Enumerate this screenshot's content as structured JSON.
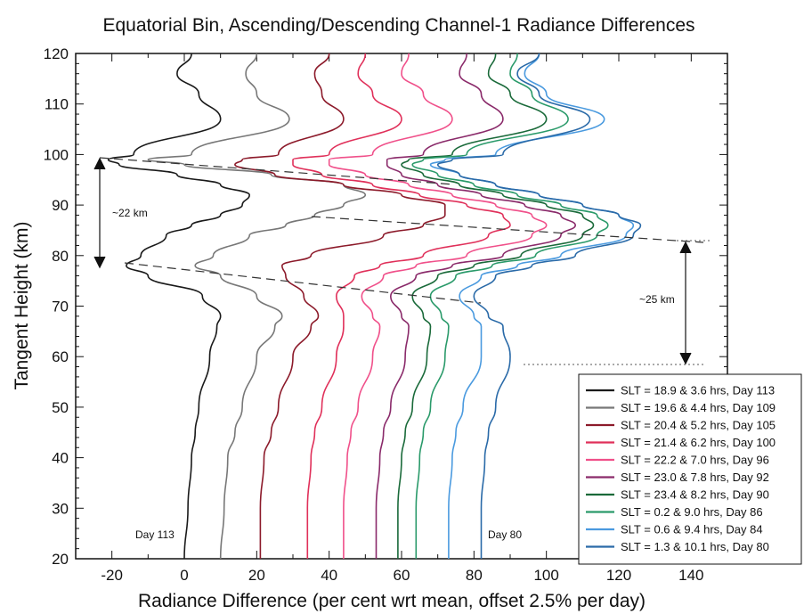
{
  "chart_data": {
    "type": "line",
    "title": "Equatorial Bin, Ascending/Descending Channel-1 Radiance Differences",
    "xlabel": "Radiance Difference (per cent wrt mean, offset 2.5% per day)",
    "ylabel": "Tangent Height (km)",
    "xlim": [
      -30,
      150
    ],
    "ylim": [
      20,
      120
    ],
    "xticks": [
      "-20",
      "0",
      "20",
      "40",
      "60",
      "80",
      "100",
      "120",
      "140"
    ],
    "yticks": [
      "20",
      "30",
      "40",
      "50",
      "60",
      "70",
      "80",
      "90",
      "100",
      "110",
      "120"
    ],
    "legend_position": "bottom-right",
    "annotations": {
      "left_span": "~22 km",
      "right_span": "~25 km",
      "day_left": "Day 113",
      "day_right": "Day 80"
    },
    "series": [
      {
        "name": "SLT = 18.9 & 3.6 hrs, Day 113",
        "color": "#1a1a1a",
        "x": [
          0,
          1,
          2,
          3,
          4,
          7,
          9,
          10,
          5,
          -10,
          -16,
          -12,
          -5,
          2,
          10,
          16,
          18,
          10,
          -2,
          -18,
          -21,
          -14,
          10,
          4,
          -2,
          2
        ],
        "y": [
          20,
          30,
          40,
          45,
          50,
          60,
          66,
          68,
          72,
          76,
          78,
          80,
          84,
          86,
          88,
          90,
          92,
          94,
          96,
          98,
          99,
          100,
          107,
          112,
          116,
          120
        ]
      },
      {
        "name": "SLT = 19.6 & 4.4 hrs, Day 109",
        "color": "#777777",
        "x": [
          10,
          11,
          12,
          14,
          16,
          20,
          25,
          27,
          20,
          10,
          3,
          8,
          18,
          28,
          36,
          44,
          50,
          44,
          24,
          0,
          -10,
          2,
          29,
          20,
          17,
          20
        ],
        "y": [
          20,
          30,
          40,
          45,
          50,
          60,
          66,
          68,
          72,
          76,
          78,
          80,
          84,
          86,
          88,
          90,
          92,
          94,
          96,
          98,
          99,
          100,
          107,
          112,
          116,
          120
        ]
      },
      {
        "name": "SLT = 20.4 & 5.2 hrs, Day 105",
        "color": "#8c1a2a",
        "x": [
          21,
          21,
          22,
          24,
          26,
          30,
          35,
          37,
          33,
          28,
          27,
          35,
          55,
          66,
          72,
          72,
          60,
          44,
          25,
          14,
          16,
          26,
          44,
          38,
          36,
          40
        ],
        "y": [
          20,
          30,
          40,
          45,
          50,
          60,
          66,
          68,
          72,
          76,
          78,
          80,
          84,
          86,
          88,
          90,
          92,
          94,
          96,
          98,
          99,
          100,
          107,
          112,
          116,
          120
        ]
      },
      {
        "name": "SLT = 21.4 & 6.2 hrs, Day 100",
        "color": "#e0305a",
        "x": [
          34,
          34,
          35,
          36,
          38,
          42,
          44,
          44,
          42,
          47,
          54,
          66,
          84,
          90,
          88,
          78,
          65,
          52,
          38,
          30,
          30,
          40,
          60,
          52,
          48,
          50
        ],
        "y": [
          20,
          30,
          40,
          45,
          50,
          60,
          66,
          68,
          72,
          76,
          78,
          80,
          84,
          86,
          88,
          90,
          92,
          94,
          96,
          98,
          99,
          100,
          107,
          112,
          116,
          120
        ]
      },
      {
        "name": "SLT = 22.2 & 7.0 hrs, Day 96",
        "color": "#f0508a",
        "x": [
          44,
          44,
          45,
          46,
          48,
          52,
          54,
          52,
          49,
          55,
          64,
          78,
          96,
          100,
          96,
          86,
          74,
          62,
          50,
          40,
          40,
          52,
          74,
          66,
          60,
          62
        ],
        "y": [
          20,
          30,
          40,
          45,
          50,
          60,
          66,
          68,
          72,
          76,
          78,
          80,
          84,
          86,
          88,
          90,
          92,
          94,
          96,
          98,
          99,
          100,
          107,
          112,
          116,
          120
        ]
      },
      {
        "name": "SLT = 23.0 & 7.8 hrs, Day 92",
        "color": "#8a2a6a",
        "x": [
          53,
          53,
          54,
          55,
          57,
          61,
          62,
          60,
          57,
          64,
          74,
          88,
          104,
          108,
          104,
          94,
          82,
          70,
          60,
          56,
          56,
          66,
          88,
          82,
          76,
          78
        ],
        "y": [
          20,
          30,
          40,
          45,
          50,
          60,
          66,
          68,
          72,
          76,
          78,
          80,
          84,
          86,
          88,
          90,
          92,
          94,
          96,
          98,
          99,
          100,
          107,
          112,
          116,
          120
        ]
      },
      {
        "name": "SLT = 23.4 & 8.2 hrs, Day 90",
        "color": "#1a6a3a",
        "x": [
          59,
          59,
          60,
          61,
          63,
          67,
          68,
          66,
          63,
          70,
          80,
          93,
          110,
          113,
          110,
          100,
          88,
          76,
          66,
          60,
          62,
          74,
          100,
          90,
          84,
          86
        ],
        "y": [
          20,
          30,
          40,
          45,
          50,
          60,
          66,
          68,
          72,
          76,
          78,
          80,
          84,
          86,
          88,
          90,
          92,
          94,
          96,
          98,
          99,
          100,
          107,
          112,
          116,
          120
        ]
      },
      {
        "name": "SLT = 0.2 & 9.0 hrs,  Day 86",
        "color": "#2a9a6a",
        "x": [
          64,
          64,
          65,
          66,
          68,
          72,
          73,
          71,
          68,
          75,
          85,
          97,
          114,
          117,
          114,
          104,
          92,
          80,
          70,
          63,
          66,
          78,
          106,
          96,
          90,
          92
        ],
        "y": [
          20,
          30,
          40,
          45,
          50,
          60,
          66,
          68,
          72,
          76,
          78,
          80,
          84,
          86,
          88,
          90,
          92,
          94,
          96,
          98,
          99,
          100,
          107,
          112,
          116,
          120
        ]
      },
      {
        "name": "SLT = 0.6 & 9.4 hrs,   Day 84",
        "color": "#4a9adf",
        "x": [
          73,
          73,
          74,
          75,
          77,
          82,
          82,
          80,
          76,
          82,
          92,
          104,
          122,
          124,
          120,
          110,
          98,
          86,
          76,
          68,
          72,
          86,
          116,
          100,
          94,
          98
        ],
        "y": [
          20,
          30,
          40,
          45,
          50,
          60,
          66,
          68,
          72,
          76,
          78,
          80,
          84,
          86,
          88,
          90,
          92,
          94,
          96,
          98,
          99,
          100,
          107,
          112,
          116,
          120
        ]
      },
      {
        "name": "SLT = 1.3 & 10.1 hrs, Day 80",
        "color": "#2a6aa8",
        "x": [
          82,
          82,
          83,
          84,
          86,
          90,
          88,
          84,
          80,
          86,
          96,
          108,
          124,
          126,
          120,
          110,
          98,
          86,
          76,
          70,
          74,
          88,
          112,
          98,
          92,
          98
        ],
        "y": [
          20,
          30,
          40,
          45,
          50,
          60,
          66,
          68,
          72,
          76,
          78,
          80,
          84,
          86,
          88,
          90,
          92,
          94,
          96,
          98,
          99,
          100,
          107,
          112,
          116,
          120
        ]
      }
    ]
  }
}
